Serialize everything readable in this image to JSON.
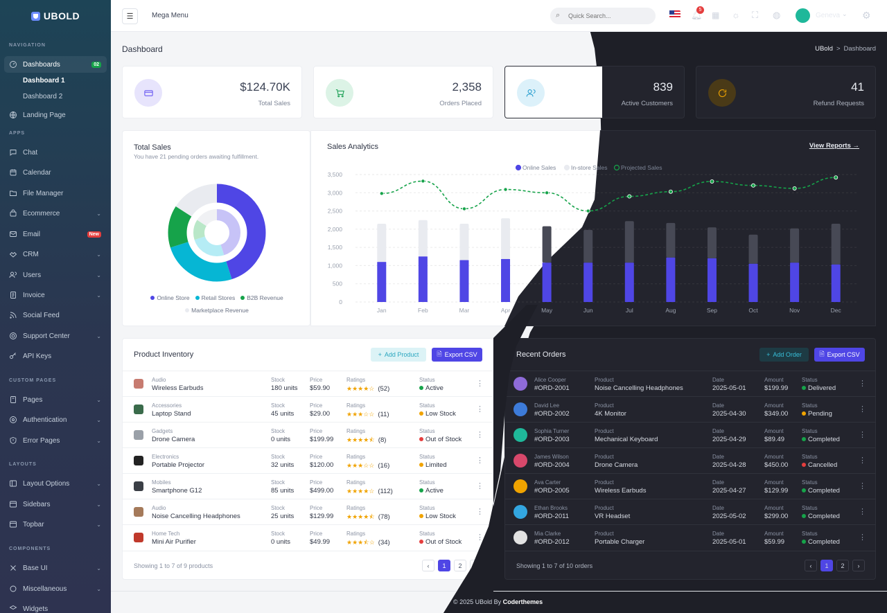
{
  "brand": {
    "name": "UBOLD"
  },
  "sidebar": {
    "sections": {
      "navigation": "NAVIGATION",
      "apps": "APPS",
      "custom_pages": "CUSTOM PAGES",
      "layouts": "LAYOUTS",
      "components": "COMPONENTS"
    },
    "dashboards": {
      "label": "Dashboards",
      "badge": "02",
      "children": [
        "Dashboard 1",
        "Dashboard 2"
      ]
    },
    "items": {
      "landing": "Landing Page",
      "chat": "Chat",
      "calendar": "Calendar",
      "file_manager": "File Manager",
      "ecommerce": "Ecommerce",
      "email": "Email",
      "email_badge": "New",
      "crm": "CRM",
      "users": "Users",
      "invoice": "Invoice",
      "social_feed": "Social Feed",
      "support_center": "Support Center",
      "api_keys": "API Keys",
      "pages": "Pages",
      "authentication": "Authentication",
      "error_pages": "Error Pages",
      "layout_options": "Layout Options",
      "sidebars": "Sidebars",
      "topbar": "Topbar",
      "base_ui": "Base UI",
      "misc": "Miscellaneous",
      "widgets": "Widgets"
    }
  },
  "topbar": {
    "mega_menu": "Mega Menu",
    "search_placeholder": "Quick Search...",
    "notif_count": "5",
    "user_name": "Geneva"
  },
  "page": {
    "title": "Dashboard",
    "breadcrumb_root": "UBold",
    "breadcrumb_sep": ">",
    "breadcrumb_current": "Dashboard"
  },
  "stats": [
    {
      "value": "$124.70K",
      "label": "Total Sales",
      "icon": "card-icon",
      "color": "#6d5df2",
      "bg": "#e7e4fc"
    },
    {
      "value": "2,358",
      "label": "Orders Placed",
      "icon": "cart-icon",
      "color": "#22a35a",
      "bg": "#dcf3e6"
    },
    {
      "value": "839",
      "label": "Active Customers",
      "icon": "users-icon",
      "color": "#2a9fcf",
      "bg": "#dcf1fa"
    },
    {
      "value": "41",
      "label": "Refund Requests",
      "icon": "refresh-icon",
      "color": "#f0a300",
      "bg": "#4a3a17"
    }
  ],
  "total_sales": {
    "title": "Total Sales",
    "subtitle": "You have 21 pending orders awaiting fulfillment."
  },
  "analytics": {
    "title": "Sales Analytics",
    "view_reports": "View Reports →"
  },
  "chart_data": [
    {
      "type": "pie",
      "title": "Total Sales",
      "outer": {
        "labels": [
          "Online Store",
          "Retail Stores",
          "B2B Revenue",
          "Marketplace Revenue"
        ],
        "values": [
          45,
          25,
          14,
          16
        ],
        "colors": [
          "#4f46e5",
          "#06b6d4",
          "#16a34a",
          "#e9ebf0"
        ]
      },
      "inner": {
        "values": [
          45,
          25,
          14,
          16
        ],
        "colors": [
          "#c7c3f7",
          "#b5ecf5",
          "#b9e7c8",
          "#f0f1f4"
        ]
      }
    },
    {
      "type": "bar",
      "title": "Sales Analytics",
      "categories": [
        "Jan",
        "Feb",
        "Mar",
        "Apr",
        "May",
        "Jun",
        "Jul",
        "Aug",
        "Sep",
        "Oct",
        "Nov",
        "Dec"
      ],
      "series": [
        {
          "name": "Online Sales",
          "values": [
            1100,
            1250,
            1150,
            1180,
            1080,
            1080,
            1080,
            1220,
            1200,
            1050,
            1080,
            1030
          ],
          "color": "#4f46e5"
        },
        {
          "name": "In-store Sales",
          "values": [
            1050,
            1000,
            1000,
            1120,
            1000,
            900,
            1140,
            950,
            850,
            800,
            940,
            1120
          ],
          "color": "#e9ebf0"
        },
        {
          "name": "Projected Sales",
          "values": [
            2980,
            3320,
            2560,
            3090,
            3000,
            2500,
            2900,
            3030,
            3310,
            3200,
            3120,
            3420
          ],
          "color": "#16a34a"
        }
      ],
      "yticks": [
        "0",
        "500",
        "1,000",
        "1,500",
        "2,000",
        "2,500",
        "3,000",
        "3,500"
      ],
      "ylim": [
        0,
        3500
      ]
    }
  ],
  "inventory": {
    "title": "Product Inventory",
    "add": "Add Product",
    "export": "Export CSV",
    "col_stock": "Stock",
    "col_price": "Price",
    "col_ratings": "Ratings",
    "col_status": "Status",
    "rows": [
      {
        "category": "Audio",
        "name": "Wireless Earbuds",
        "stock": "180 units",
        "price": "$59.90",
        "stars": "★★★★☆",
        "count": "(52)",
        "status": "Active",
        "status_color": "#16a34a",
        "thumb": "#c77b70"
      },
      {
        "category": "Accessories",
        "name": "Laptop Stand",
        "stock": "45 units",
        "price": "$29.00",
        "stars": "★★★☆☆",
        "count": "(11)",
        "status": "Low Stock",
        "status_color": "#f0a300",
        "thumb": "#3a6b4b"
      },
      {
        "category": "Gadgets",
        "name": "Drone Camera",
        "stock": "0 units",
        "price": "$199.99",
        "stars": "★★★★⯪",
        "count": "(8)",
        "status": "Out of Stock",
        "status_color": "#e53e3e",
        "thumb": "#9aa0a8"
      },
      {
        "category": "Electronics",
        "name": "Portable Projector",
        "stock": "32 units",
        "price": "$120.00",
        "stars": "★★★☆☆",
        "count": "(16)",
        "status": "Limited",
        "status_color": "#f0a300",
        "thumb": "#222"
      },
      {
        "category": "Mobiles",
        "name": "Smartphone G12",
        "stock": "85 units",
        "price": "$499.00",
        "stars": "★★★★☆",
        "count": "(112)",
        "status": "Active",
        "status_color": "#16a34a",
        "thumb": "#3b3f46"
      },
      {
        "category": "Audio",
        "name": "Noise Cancelling Headphones",
        "stock": "25 units",
        "price": "$129.99",
        "stars": "★★★★⯪",
        "count": "(78)",
        "status": "Low Stock",
        "status_color": "#f0a300",
        "thumb": "#a57a5a"
      },
      {
        "category": "Home Tech",
        "name": "Mini Air Purifier",
        "stock": "0 units",
        "price": "$49.99",
        "stars": "★★★⯪☆",
        "count": "(34)",
        "status": "Out of Stock",
        "status_color": "#e53e3e",
        "thumb": "#c0392b"
      }
    ],
    "footer": "Showing 1 to 7 of 9 products",
    "pages": [
      "‹",
      "1",
      "2",
      "›"
    ]
  },
  "orders": {
    "title": "Recent Orders",
    "add": "Add Order",
    "export": "Export CSV",
    "col_product": "Product",
    "col_date": "Date",
    "col_amount": "Amount",
    "col_status": "Status",
    "rows": [
      {
        "customer": "Alice Cooper",
        "id": "#ORD-2001",
        "product": "Noise Cancelling Headphones",
        "date": "2025-05-01",
        "amount": "$199.99",
        "status": "Delivered",
        "status_color": "#16a34a",
        "avatar": "#8e6bd8"
      },
      {
        "customer": "David Lee",
        "id": "#ORD-2002",
        "product": "4K Monitor",
        "date": "2025-04-30",
        "amount": "$349.00",
        "status": "Pending",
        "status_color": "#f0a300",
        "avatar": "#3d7bd9"
      },
      {
        "customer": "Sophia Turner",
        "id": "#ORD-2003",
        "product": "Mechanical Keyboard",
        "date": "2025-04-29",
        "amount": "$89.49",
        "status": "Completed",
        "status_color": "#16a34a",
        "avatar": "#1fb89a"
      },
      {
        "customer": "James Wilson",
        "id": "#ORD-2004",
        "product": "Drone Camera",
        "date": "2025-04-28",
        "amount": "$450.00",
        "status": "Cancelled",
        "status_color": "#e53e3e",
        "avatar": "#d8486b"
      },
      {
        "customer": "Ava Carter",
        "id": "#ORD-2005",
        "product": "Wireless Earbuds",
        "date": "2025-04-27",
        "amount": "$129.99",
        "status": "Completed",
        "status_color": "#16a34a",
        "avatar": "#f0a300"
      },
      {
        "customer": "Ethan Brooks",
        "id": "#ORD-2011",
        "product": "VR Headset",
        "date": "2025-05-02",
        "amount": "$299.00",
        "status": "Completed",
        "status_color": "#16a34a",
        "avatar": "#33a6e0"
      },
      {
        "customer": "Mia Clarke",
        "id": "#ORD-2012",
        "product": "Portable Charger",
        "date": "2025-05-01",
        "amount": "$59.99",
        "status": "Completed",
        "status_color": "#16a34a",
        "avatar": "#e2e2e2"
      }
    ],
    "footer": "Showing 1 to 7 of 10 orders",
    "pages": [
      "‹",
      "1",
      "2",
      "›"
    ]
  },
  "footer": {
    "text": "© 2025 UBold By ",
    "brand": "Coderthemes"
  }
}
